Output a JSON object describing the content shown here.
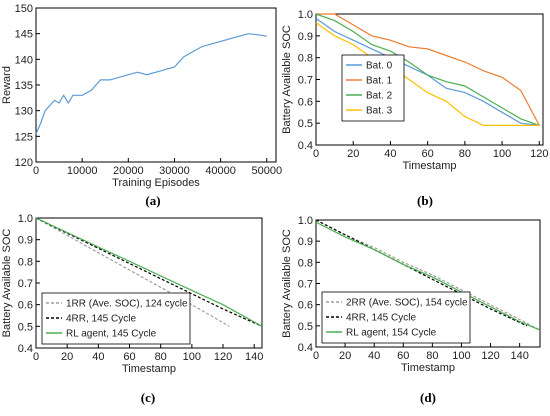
{
  "chart_data": [
    {
      "panel": "a",
      "type": "line",
      "caption": "(a)",
      "xlabel": "Training Episodes",
      "ylabel": "Reward",
      "xlim": [
        0,
        52000
      ],
      "ylim": [
        120,
        150
      ],
      "xticks": [
        "0",
        "10000",
        "20000",
        "30000",
        "40000",
        "50000"
      ],
      "yticks": [
        "120",
        "125",
        "130",
        "135",
        "140",
        "145",
        "150"
      ],
      "grid": false,
      "series": [
        {
          "color": "#5b9bd5",
          "x": [
            0,
            1000,
            2000,
            3000,
            4000,
            5000,
            6000,
            7000,
            8000,
            10000,
            12000,
            14000,
            16000,
            18000,
            20000,
            22000,
            24000,
            26000,
            28000,
            30000,
            32000,
            34000,
            36000,
            38000,
            40000,
            42000,
            44000,
            46000,
            48000,
            50000
          ],
          "y": [
            125.5,
            127.5,
            130,
            131,
            132,
            131.5,
            133,
            131.5,
            133,
            133,
            134,
            136,
            136,
            136.5,
            137,
            137.5,
            137,
            137.5,
            138,
            138.5,
            140.5,
            141.5,
            142.5,
            143,
            143.5,
            144,
            144.5,
            145,
            144.8,
            144.5
          ]
        }
      ]
    },
    {
      "panel": "b",
      "type": "line",
      "caption": "(b)",
      "xlabel": "Timestamp",
      "ylabel": "Battery Available SOC",
      "xlim": [
        0,
        122
      ],
      "ylim": [
        0.4,
        1.0
      ],
      "xticks": [
        "0",
        "20",
        "40",
        "60",
        "80",
        "100",
        "120"
      ],
      "yticks": [
        "0.4",
        "0.5",
        "0.6",
        "0.7",
        "0.8",
        "0.9",
        "1.0"
      ],
      "grid": false,
      "legend_position": "bottom-left",
      "series": [
        {
          "name": "Bat. 0",
          "color": "#5b9bd5",
          "x": [
            0,
            10,
            20,
            30,
            40,
            50,
            60,
            70,
            80,
            90,
            100,
            110,
            120
          ],
          "y": [
            0.98,
            0.92,
            0.88,
            0.84,
            0.8,
            0.76,
            0.72,
            0.66,
            0.64,
            0.6,
            0.55,
            0.5,
            0.49
          ]
        },
        {
          "name": "Bat. 1",
          "color": "#ed7d31",
          "x": [
            0,
            10,
            20,
            30,
            40,
            50,
            60,
            70,
            80,
            90,
            100,
            110,
            120
          ],
          "y": [
            1.0,
            1.0,
            0.95,
            0.9,
            0.88,
            0.85,
            0.84,
            0.81,
            0.78,
            0.74,
            0.71,
            0.65,
            0.49
          ]
        },
        {
          "name": "Bat. 2",
          "color": "#4caf50",
          "x": [
            0,
            10,
            20,
            30,
            40,
            50,
            60,
            70,
            80,
            90,
            100,
            110,
            120
          ],
          "y": [
            1.0,
            0.97,
            0.92,
            0.86,
            0.83,
            0.78,
            0.72,
            0.69,
            0.67,
            0.62,
            0.57,
            0.52,
            0.49
          ]
        },
        {
          "name": "Bat. 3",
          "color": "#ffc000",
          "x": [
            0,
            10,
            20,
            30,
            40,
            50,
            60,
            70,
            80,
            90,
            100,
            110,
            120
          ],
          "y": [
            0.96,
            0.9,
            0.86,
            0.8,
            0.76,
            0.7,
            0.64,
            0.6,
            0.53,
            0.49,
            0.49,
            0.49,
            0.49
          ]
        }
      ]
    },
    {
      "panel": "c",
      "type": "line",
      "caption": "(c)",
      "xlabel": "Timestamp",
      "ylabel": "Battery Available SOC",
      "xlim": [
        0,
        145
      ],
      "ylim": [
        0.4,
        1.0
      ],
      "xticks": [
        "0",
        "20",
        "40",
        "60",
        "80",
        "100",
        "120",
        "140"
      ],
      "yticks": [
        "0.4",
        "0.5",
        "0.6",
        "0.7",
        "0.8",
        "0.9",
        "1.0"
      ],
      "grid": false,
      "legend_position": "bottom-left",
      "series": [
        {
          "name": "1RR (Ave. SOC), 124 cycle",
          "style": "dashed",
          "color": "#9e9e9e",
          "x": [
            0,
            20,
            40,
            60,
            80,
            100,
            124
          ],
          "y": [
            1.0,
            0.92,
            0.84,
            0.76,
            0.68,
            0.6,
            0.5
          ]
        },
        {
          "name": "4RR, 145 Cycle",
          "style": "dashed",
          "color": "#000000",
          "x": [
            0,
            20,
            40,
            60,
            80,
            100,
            120,
            145
          ],
          "y": [
            1.0,
            0.93,
            0.86,
            0.79,
            0.72,
            0.65,
            0.58,
            0.5
          ]
        },
        {
          "name": "RL agent, 145 Cycle",
          "style": "solid",
          "color": "#4caf50",
          "x": [
            0,
            20,
            40,
            60,
            80,
            100,
            120,
            145
          ],
          "y": [
            1.0,
            0.933,
            0.866,
            0.8,
            0.733,
            0.666,
            0.6,
            0.5
          ]
        }
      ]
    },
    {
      "panel": "d",
      "type": "line",
      "caption": "(d)",
      "xlabel": "Timestamp",
      "ylabel": "Battery Available SOC",
      "xlim": [
        0,
        154
      ],
      "ylim": [
        0.4,
        1.0
      ],
      "xticks": [
        "0",
        "20",
        "40",
        "60",
        "80",
        "100",
        "120",
        "140"
      ],
      "yticks": [
        "0.4",
        "0.5",
        "0.6",
        "0.7",
        "0.8",
        "0.9",
        "1.0"
      ],
      "grid": false,
      "legend_position": "bottom-left",
      "series": [
        {
          "name": "2RR (Ave. SOC), 154 cycle",
          "style": "dashed",
          "color": "#9e9e9e",
          "x": [
            0,
            20,
            40,
            60,
            80,
            100,
            120,
            140,
            154
          ],
          "y": [
            1.0,
            0.93,
            0.87,
            0.8,
            0.74,
            0.67,
            0.6,
            0.53,
            0.48
          ]
        },
        {
          "name": "4RR, 145 Cycle",
          "style": "dashed",
          "color": "#000000",
          "x": [
            0,
            20,
            40,
            60,
            80,
            100,
            120,
            145
          ],
          "y": [
            1.0,
            0.93,
            0.86,
            0.79,
            0.72,
            0.65,
            0.58,
            0.5
          ]
        },
        {
          "name": "RL agent, 154 Cycle",
          "style": "solid",
          "color": "#4caf50",
          "x": [
            0,
            20,
            40,
            60,
            80,
            100,
            120,
            140,
            154
          ],
          "y": [
            0.99,
            0.92,
            0.86,
            0.79,
            0.73,
            0.66,
            0.59,
            0.52,
            0.48
          ]
        }
      ]
    }
  ]
}
